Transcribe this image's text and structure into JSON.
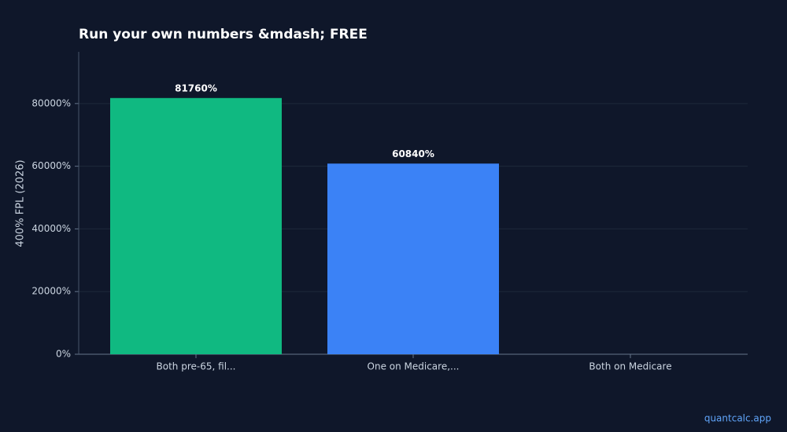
{
  "chart_data": {
    "type": "bar",
    "title": "Run your own numbers &mdash; FREE",
    "y_label": "400% FPL (2026)",
    "categories": [
      "Both pre-65, fil...",
      "One on Medicare,...",
      "Both on Medicare"
    ],
    "values": [
      81760,
      60840,
      null
    ],
    "value_labels": [
      "81760%",
      "60840%",
      null
    ],
    "colors": [
      "#10b981",
      "#3b82f6",
      "#3b82f6"
    ],
    "ylim": [
      0,
      96500
    ],
    "yticks": [
      {
        "value": 0,
        "label": "0%"
      },
      {
        "value": 20000,
        "label": "20000%"
      },
      {
        "value": 40000,
        "label": "40000%"
      },
      {
        "value": 60000,
        "label": "60000%"
      },
      {
        "value": 80000,
        "label": "80000%"
      }
    ],
    "grid": true,
    "watermark": "quantcalc.app"
  }
}
